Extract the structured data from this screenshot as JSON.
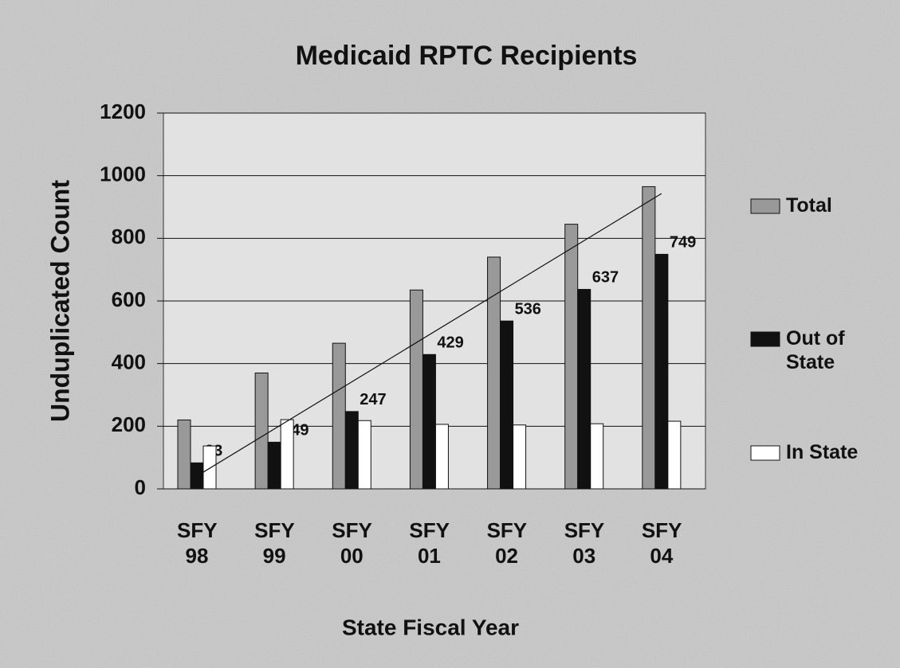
{
  "chart_data": {
    "type": "bar",
    "title": "Medicaid RPTC Recipients",
    "x_label": "State Fiscal Year",
    "y_label": "Unduplicated Count",
    "categories": [
      "SFY 98",
      "SFY 99",
      "SFY 00",
      "SFY 01",
      "SFY 02",
      "SFY 03",
      "SFY 04"
    ],
    "series": [
      {
        "name": "Total",
        "color": "#999999",
        "values": [
          220,
          370,
          465,
          635,
          740,
          845,
          965
        ]
      },
      {
        "name": "Out of State",
        "color": "#111111",
        "values": [
          83,
          149,
          247,
          429,
          536,
          637,
          749
        ],
        "data_labels": true
      },
      {
        "name": "In State",
        "color": "#ffffff",
        "values": [
          137,
          221,
          218,
          206,
          204,
          208,
          216
        ]
      }
    ],
    "trendline": {
      "values": [
        41,
        943
      ]
    },
    "ylim": [
      0,
      1200
    ],
    "yticks": [
      0,
      200,
      400,
      600,
      800,
      1000,
      1200
    ],
    "grid": true,
    "legend": "right"
  }
}
